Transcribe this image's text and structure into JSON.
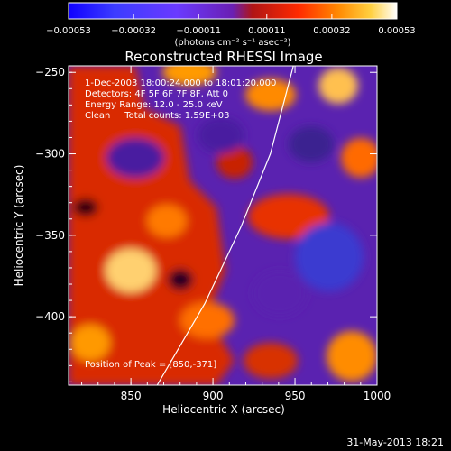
{
  "chart_data": {
    "type": "heatmap",
    "title": "Reconstructed RHESSI Image",
    "xlabel": "Heliocentric X (arcsec)",
    "ylabel": "Heliocentric Y (arcsec)",
    "xlim": [
      812,
      1000
    ],
    "ylim": [
      -442,
      -246
    ],
    "x_ticks": [
      850,
      900,
      950,
      1000
    ],
    "y_ticks": [
      -250,
      -300,
      -350,
      -400
    ],
    "x_tick_labels": [
      "850",
      "900",
      "950",
      "1000"
    ],
    "y_tick_labels": [
      "−250",
      "−300",
      "−350",
      "−400"
    ],
    "colorbar": {
      "min": -0.00053,
      "max": 0.00053,
      "tick_values": [
        -0.00053,
        -0.00032,
        -0.00011,
        0.00011,
        0.00032,
        0.00053
      ],
      "tick_labels": [
        "−0.00053",
        "−0.00032",
        "−0.00011",
        "0.00011",
        "0.00032",
        "0.00053"
      ],
      "unit_label": "(photons cm⁻² s⁻¹ asec⁻²)"
    },
    "annotations": [
      "1-Dec-2003 18:00:24.000 to 18:01:20.000",
      "Detectors: 4F 5F 6F 7F 8F, Att 0",
      "Energy Range: 12.0 - 25.0 keV",
      "Clean     Total counts: 1.59E+03"
    ],
    "peak_label": "Position of Peak = [850,-371]",
    "peak": {
      "x": 850,
      "y": -371
    },
    "limb_curve": [
      [
        866,
        -442
      ],
      [
        895,
        -392
      ],
      [
        917,
        -345
      ],
      [
        935,
        -300
      ],
      [
        949,
        -246
      ]
    ],
    "grid": false,
    "colors": {
      "background": "#000000",
      "text": "#ffffff",
      "limb": "#ffffff"
    }
  },
  "footer": {
    "timestamp": "31-May-2013 18:21"
  }
}
